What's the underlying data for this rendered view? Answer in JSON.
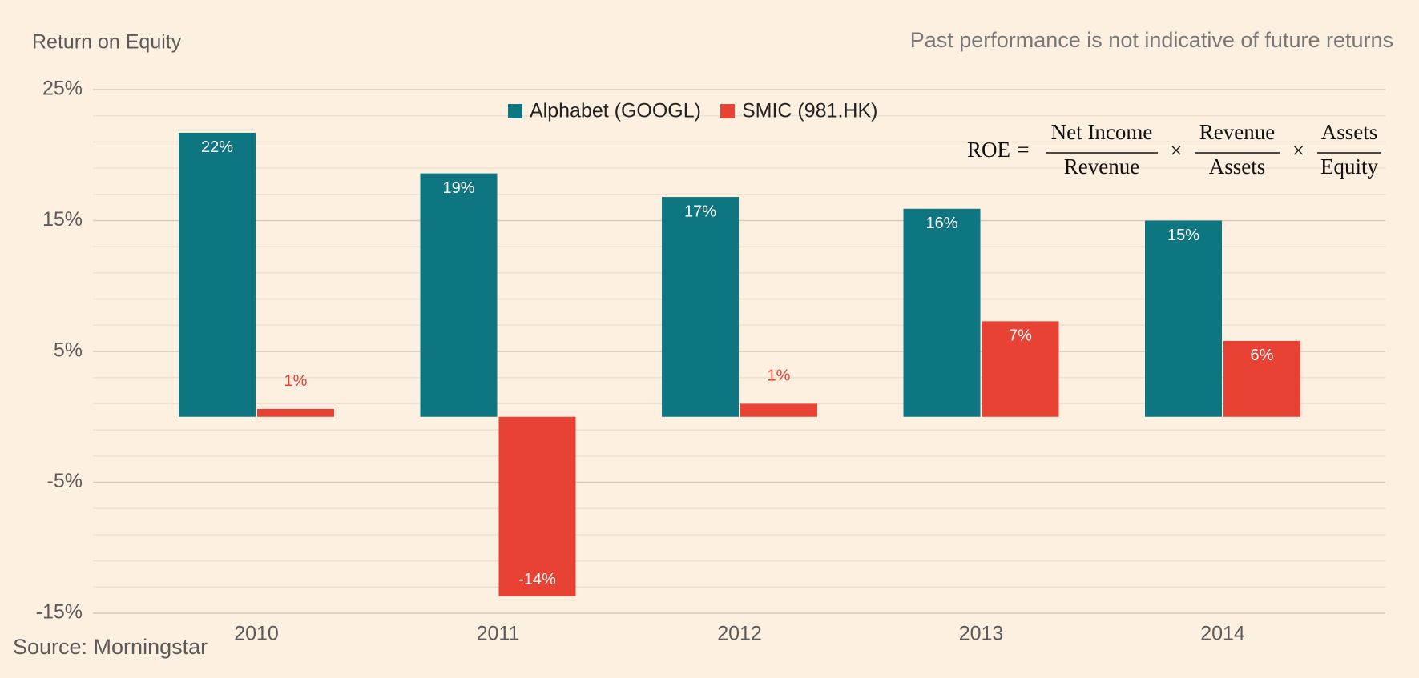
{
  "chart_data": {
    "type": "bar",
    "y_label": "Return on Equity",
    "subtitle": "Past performance is not indicative of future returns",
    "source": "Source: Morningstar",
    "categories": [
      "2010",
      "2011",
      "2012",
      "2013",
      "2014"
    ],
    "series": [
      {
        "name": "Alphabet (GOOGL)",
        "color": "#0e7680",
        "values": [
          21.7,
          18.6,
          16.8,
          15.9,
          15.0
        ],
        "value_labels": [
          "22%",
          "19%",
          "17%",
          "16%",
          "15%"
        ]
      },
      {
        "name": "SMIC (981.HK)",
        "color": "#e84235",
        "values": [
          0.6,
          -13.7,
          1.0,
          7.3,
          5.8
        ],
        "value_labels": [
          "1%",
          "-14%",
          "1%",
          "7%",
          "6%"
        ]
      }
    ],
    "ylim": [
      -15,
      25
    ],
    "yticks": [
      {
        "value": -15,
        "label": "-15%"
      },
      {
        "value": -5,
        "label": "-5%"
      },
      {
        "value": 5,
        "label": "5%"
      },
      {
        "value": 15,
        "label": "15%"
      },
      {
        "value": 25,
        "label": "25%"
      }
    ],
    "yticks_minor": [
      -13,
      -11,
      -9,
      -7,
      -3,
      -1,
      1,
      3,
      7,
      9,
      11,
      13,
      17,
      19,
      21,
      23
    ],
    "grid": true,
    "legend": "top",
    "formula": {
      "lhs": "ROE",
      "equals": "=",
      "times": "×",
      "terms": [
        {
          "numerator": "Net Income",
          "denominator": "Revenue"
        },
        {
          "numerator": "Revenue",
          "denominator": "Assets"
        },
        {
          "numerator": "Assets",
          "denominator": "Equity"
        }
      ]
    }
  }
}
